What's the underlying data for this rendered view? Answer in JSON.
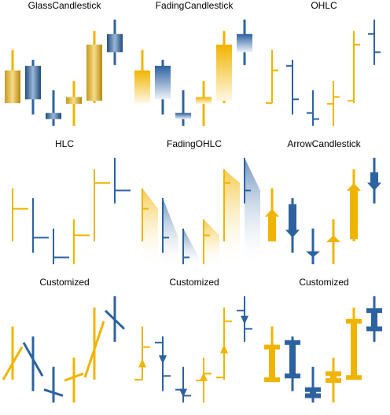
{
  "chart_data": [
    {
      "type": "candlestick",
      "title": "GlassCandlestick",
      "up_color": "#f0b400",
      "down_color": "#2d62a0",
      "ylim": [
        0,
        150
      ],
      "open": [
        35,
        84,
        22,
        34,
        38,
        126
      ],
      "high": [
        105,
        92,
        52,
        64,
        130,
        145
      ],
      "low": [
        35,
        20,
        5,
        5,
        35,
        85
      ],
      "close": [
        78,
        40,
        14,
        43,
        112,
        102
      ]
    },
    {
      "type": "candlestick",
      "title": "FadingCandlestick",
      "up_color": "#f0b400",
      "down_color": "#2d62a0",
      "ylim": [
        0,
        150
      ],
      "open": [
        35,
        84,
        22,
        34,
        38,
        126
      ],
      "high": [
        105,
        92,
        52,
        64,
        130,
        145
      ],
      "low": [
        35,
        20,
        5,
        5,
        35,
        85
      ],
      "close": [
        78,
        40,
        14,
        43,
        112,
        102
      ]
    },
    {
      "type": "candlestick",
      "title": "OHLC",
      "up_color": "#f0b400",
      "down_color": "#2d62a0",
      "ylim": [
        0,
        150
      ],
      "open": [
        35,
        84,
        22,
        34,
        38,
        126
      ],
      "high": [
        105,
        92,
        52,
        64,
        130,
        145
      ],
      "low": [
        35,
        20,
        5,
        5,
        35,
        85
      ],
      "close": [
        78,
        40,
        14,
        43,
        112,
        102
      ]
    },
    {
      "type": "candlestick",
      "title": "HLC",
      "up_color": "#f0b400",
      "down_color": "#2d62a0",
      "ylim": [
        0,
        150
      ],
      "open": [
        35,
        84,
        22,
        34,
        38,
        126
      ],
      "high": [
        105,
        92,
        52,
        64,
        130,
        145
      ],
      "low": [
        35,
        20,
        5,
        5,
        35,
        85
      ],
      "close": [
        78,
        40,
        14,
        43,
        112,
        102
      ]
    },
    {
      "type": "candlestick",
      "title": "FadingOHLC",
      "up_color": "#f0b400",
      "down_color": "#2d62a0",
      "ylim": [
        0,
        150
      ],
      "open": [
        35,
        84,
        22,
        34,
        38,
        126
      ],
      "high": [
        105,
        92,
        52,
        64,
        130,
        145
      ],
      "low": [
        35,
        20,
        5,
        5,
        35,
        85
      ],
      "close": [
        78,
        40,
        14,
        43,
        112,
        102
      ]
    },
    {
      "type": "candlestick",
      "title": "ArrowCandlestick",
      "up_color": "#f0b400",
      "down_color": "#2d62a0",
      "ylim": [
        0,
        150
      ],
      "open": [
        35,
        84,
        22,
        34,
        38,
        126
      ],
      "high": [
        105,
        92,
        52,
        64,
        130,
        145
      ],
      "low": [
        35,
        20,
        5,
        5,
        35,
        85
      ],
      "close": [
        78,
        40,
        14,
        43,
        112,
        102
      ]
    },
    {
      "type": "candlestick",
      "title": "Customized",
      "up_color": "#f0b400",
      "down_color": "#2d62a0",
      "ylim": [
        0,
        150
      ],
      "open": [
        35,
        84,
        22,
        34,
        38,
        126
      ],
      "high": [
        105,
        92,
        52,
        64,
        130,
        145
      ],
      "low": [
        35,
        20,
        5,
        5,
        35,
        85
      ],
      "close": [
        78,
        40,
        14,
        43,
        112,
        102
      ]
    },
    {
      "type": "candlestick",
      "title": "Customized",
      "up_color": "#f0b400",
      "down_color": "#2d62a0",
      "ylim": [
        0,
        150
      ],
      "open": [
        35,
        84,
        22,
        34,
        38,
        126
      ],
      "high": [
        105,
        92,
        52,
        64,
        130,
        145
      ],
      "low": [
        35,
        20,
        5,
        5,
        35,
        85
      ],
      "close": [
        78,
        40,
        14,
        43,
        112,
        102
      ]
    },
    {
      "type": "candlestick",
      "title": "Customized",
      "up_color": "#f0b400",
      "down_color": "#2d62a0",
      "ylim": [
        0,
        150
      ],
      "open": [
        35,
        84,
        22,
        34,
        38,
        126
      ],
      "high": [
        105,
        92,
        52,
        64,
        130,
        145
      ],
      "low": [
        35,
        20,
        5,
        5,
        35,
        85
      ],
      "close": [
        78,
        40,
        14,
        43,
        112,
        102
      ]
    }
  ]
}
